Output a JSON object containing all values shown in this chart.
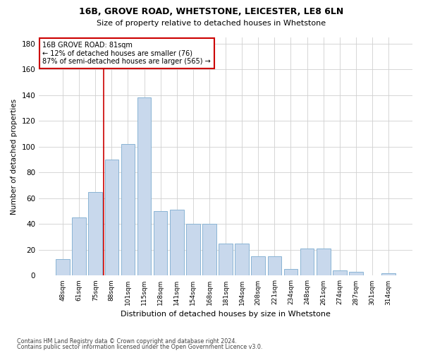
{
  "title1": "16B, GROVE ROAD, WHETSTONE, LEICESTER, LE8 6LN",
  "title2": "Size of property relative to detached houses in Whetstone",
  "xlabel": "Distribution of detached houses by size in Whetstone",
  "ylabel": "Number of detached properties",
  "categories": [
    "48sqm",
    "61sqm",
    "75sqm",
    "88sqm",
    "101sqm",
    "115sqm",
    "128sqm",
    "141sqm",
    "154sqm",
    "168sqm",
    "181sqm",
    "194sqm",
    "208sqm",
    "221sqm",
    "234sqm",
    "248sqm",
    "261sqm",
    "274sqm",
    "287sqm",
    "301sqm",
    "314sqm"
  ],
  "values": [
    13,
    45,
    65,
    90,
    102,
    138,
    50,
    51,
    40,
    40,
    25,
    25,
    15,
    15,
    5,
    21,
    21,
    4,
    3,
    0,
    2
  ],
  "bar_color": "#c8d8ec",
  "bar_edge_color": "#8ab4d4",
  "vline_x": 2.5,
  "vline_color": "#cc0000",
  "annotation_line1": "16B GROVE ROAD: 81sqm",
  "annotation_line2": "← 12% of detached houses are smaller (76)",
  "annotation_line3": "87% of semi-detached houses are larger (565) →",
  "annotation_box_color": "#cc0000",
  "ylim": [
    0,
    185
  ],
  "yticks": [
    0,
    20,
    40,
    60,
    80,
    100,
    120,
    140,
    160,
    180
  ],
  "footer1": "Contains HM Land Registry data © Crown copyright and database right 2024.",
  "footer2": "Contains public sector information licensed under the Open Government Licence v3.0.",
  "background_color": "#ffffff",
  "grid_color": "#d0d0d0"
}
